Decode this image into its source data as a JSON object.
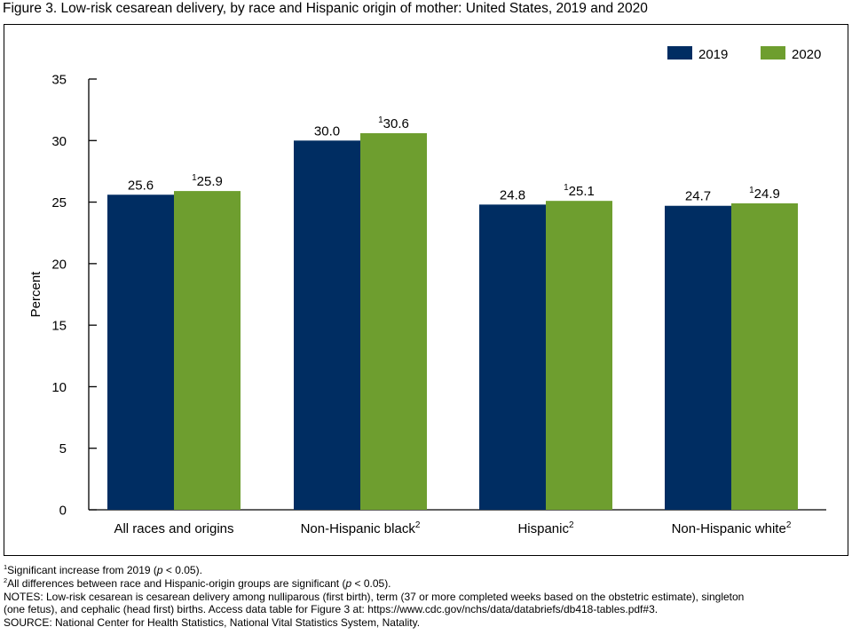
{
  "figure": {
    "title": "Figure 3. Low-risk cesarean delivery, by race and Hispanic origin of mother: United States, 2019 and 2020"
  },
  "chart_data": {
    "type": "bar",
    "ylabel": "Percent",
    "ylim": [
      0,
      35
    ],
    "yticks": [
      0,
      5,
      10,
      15,
      20,
      25,
      30,
      35
    ],
    "categories": [
      {
        "label": "All races and origins",
        "sup": ""
      },
      {
        "label": "Non-Hispanic black",
        "sup": "2"
      },
      {
        "label": "Hispanic",
        "sup": "2"
      },
      {
        "label": "Non-Hispanic white",
        "sup": "2"
      }
    ],
    "series": [
      {
        "name": "2019",
        "color": "#002d62",
        "values": [
          25.6,
          30.0,
          24.8,
          24.7
        ],
        "labels": [
          "25.6",
          "30.0",
          "24.8",
          "24.7"
        ],
        "sups": [
          "",
          "",
          "",
          ""
        ]
      },
      {
        "name": "2020",
        "color": "#6e9e2f",
        "values": [
          25.9,
          30.6,
          25.1,
          24.9
        ],
        "labels": [
          "25.9",
          "30.6",
          "25.1",
          "24.9"
        ],
        "sups": [
          "1",
          "1",
          "1",
          "1"
        ]
      }
    ],
    "legend": "top-right",
    "grid": false
  },
  "footnotes": {
    "n1": {
      "sup": "1",
      "pre": "Significant increase from 2019 (",
      "italic": "p",
      "post": " < 0.05)."
    },
    "n2": {
      "sup": "2",
      "pre": "All differences between race and Hispanic-origin groups are significant (",
      "italic": "p",
      "post": " < 0.05)."
    },
    "notes_line1": "NOTES: Low-risk cesarean is cesarean delivery among nulliparous (first birth), term (37 or more completed weeks based on the obstetric estimate), singleton",
    "notes_line2": "(one fetus), and cephalic (head first) births. Access data table for Figure 3 at: https://www.cdc.gov/nchs/data/databriefs/db418-tables.pdf#3.",
    "source": "SOURCE: National Center for Health Statistics, National Vital Statistics System, Natality."
  }
}
